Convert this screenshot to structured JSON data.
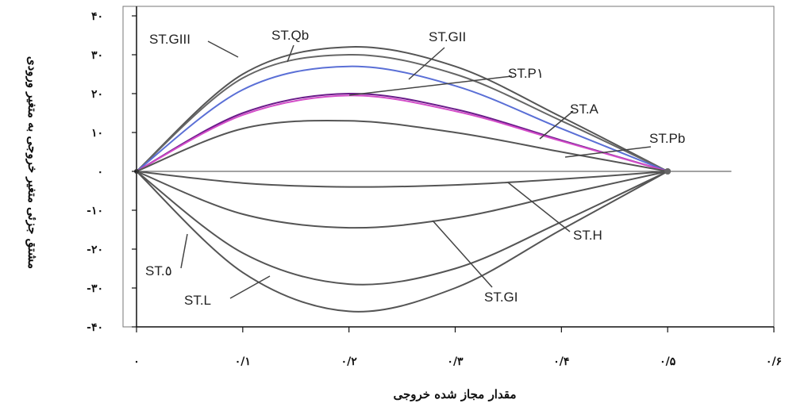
{
  "chart_data": {
    "type": "line",
    "xlabel": "مقدار مجاز شده خروجی",
    "ylabel": "مشتق جزئی متغیر خروجی به متغیر ورودی",
    "xlim": [
      0,
      0.6
    ],
    "ylim": [
      -40,
      40
    ],
    "grid": false,
    "x_ticks": [
      {
        "value": 0,
        "label": "۰"
      },
      {
        "value": 0.1,
        "label": "۰/۱"
      },
      {
        "value": 0.2,
        "label": "۰/۲"
      },
      {
        "value": 0.3,
        "label": "۰/۳"
      },
      {
        "value": 0.4,
        "label": "۰/۴"
      },
      {
        "value": 0.5,
        "label": "۰/۵"
      },
      {
        "value": 0.6,
        "label": "۰/۶"
      }
    ],
    "y_ticks": [
      {
        "value": 40,
        "label": "۴۰"
      },
      {
        "value": 30,
        "label": "۳۰"
      },
      {
        "value": 20,
        "label": "۲۰"
      },
      {
        "value": 10,
        "label": "۱۰"
      },
      {
        "value": 0,
        "label": "۰"
      },
      {
        "value": -10,
        "label": "-۱۰"
      },
      {
        "value": -20,
        "label": "-۲۰"
      },
      {
        "value": -30,
        "label": "-۳۰"
      },
      {
        "value": -40,
        "label": "-۴۰"
      }
    ],
    "zero_line": {
      "x_start": 0,
      "x_end": 0.56
    },
    "series": [
      {
        "name": "ST.GIII",
        "color": "#555555",
        "x": [
          0,
          0.1,
          0.2,
          0.3,
          0.4,
          0.5
        ],
        "values": [
          0,
          25,
          32,
          27,
          14,
          0
        ]
      },
      {
        "name": "ST.Qb",
        "color": "#666666",
        "x": [
          0,
          0.1,
          0.2,
          0.3,
          0.4,
          0.5
        ],
        "values": [
          0,
          24,
          30,
          25,
          13,
          0
        ]
      },
      {
        "name": "ST.GII",
        "color": "#5a6fd6",
        "x": [
          0,
          0.1,
          0.2,
          0.3,
          0.4,
          0.5
        ],
        "values": [
          0,
          21,
          27,
          22,
          11,
          0
        ]
      },
      {
        "name": "ST.P١",
        "color": "#6a1b8a",
        "x": [
          0,
          0.1,
          0.2,
          0.3,
          0.4,
          0.5
        ],
        "values": [
          0,
          15,
          20,
          16,
          8,
          0
        ]
      },
      {
        "name": "ST.A",
        "color": "#d34cc8",
        "x": [
          0,
          0.1,
          0.2,
          0.3,
          0.4,
          0.5
        ],
        "values": [
          0,
          14.5,
          19.5,
          15.5,
          7.8,
          0
        ]
      },
      {
        "name": "ST.Pb",
        "color": "#555555",
        "x": [
          0,
          0.1,
          0.2,
          0.3,
          0.4,
          0.5
        ],
        "values": [
          0,
          11,
          13,
          10,
          5,
          0
        ]
      },
      {
        "name": "ST.H",
        "color": "#555555",
        "x": [
          0,
          0.1,
          0.2,
          0.3,
          0.4,
          0.5
        ],
        "values": [
          0,
          -3,
          -4,
          -3.5,
          -2,
          0
        ]
      },
      {
        "name": "ST.GI",
        "color": "#555555",
        "x": [
          0,
          0.1,
          0.2,
          0.3,
          0.4,
          0.5
        ],
        "values": [
          0,
          -11,
          -14.5,
          -12,
          -6,
          0
        ]
      },
      {
        "name": "ST.٥",
        "color": "#555555",
        "x": [
          0,
          0.1,
          0.2,
          0.3,
          0.4,
          0.5
        ],
        "values": [
          0,
          -21,
          -29,
          -25,
          -13,
          0
        ]
      },
      {
        "name": "ST.L",
        "color": "#555555",
        "x": [
          0,
          0.1,
          0.2,
          0.3,
          0.4,
          0.5
        ],
        "values": [
          0,
          -26,
          -36,
          -30,
          -15,
          0
        ]
      }
    ]
  }
}
